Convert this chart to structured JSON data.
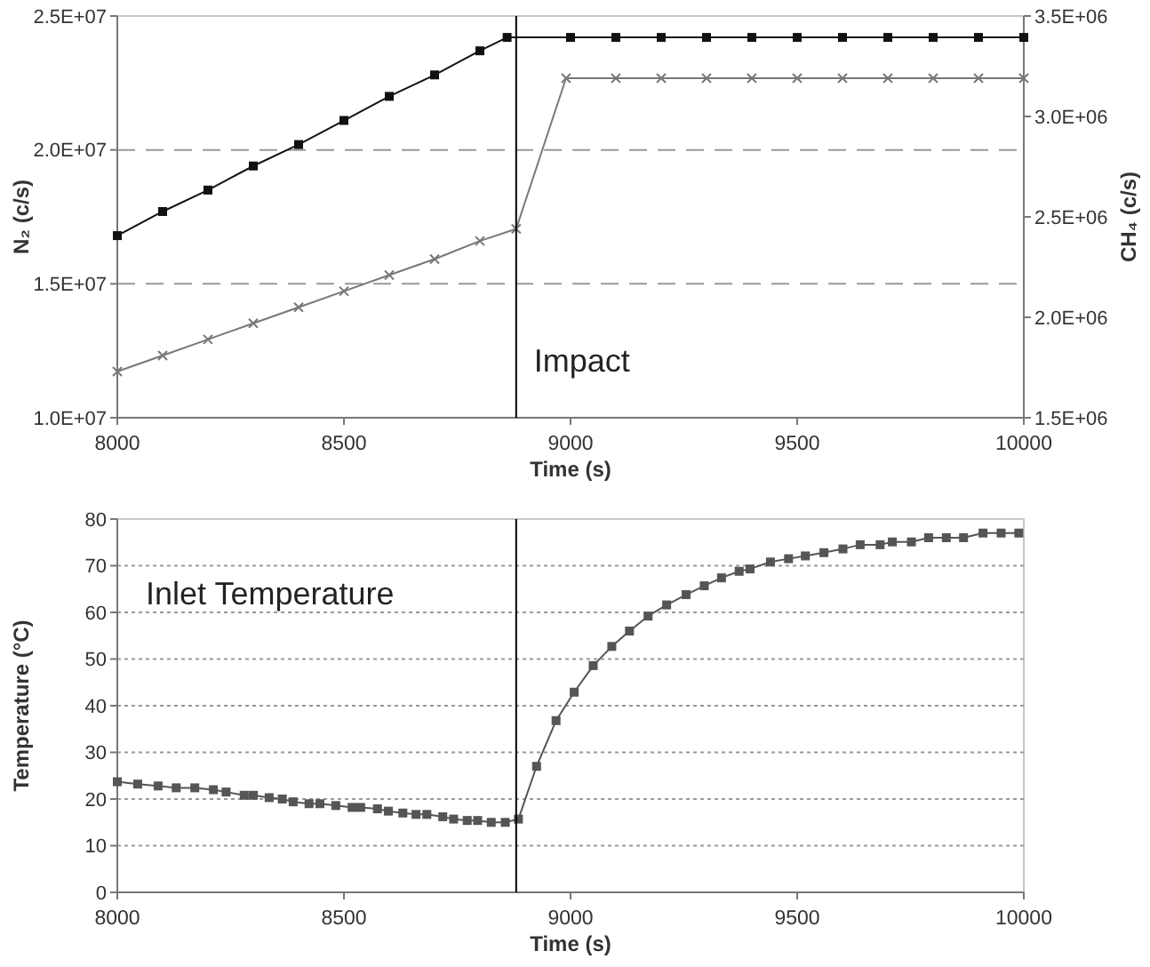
{
  "chart_data": [
    {
      "type": "line",
      "xlabel": "Time (s)",
      "ylabel": "N₂ (c/s)",
      "y2label": "CH₄ (c/s)",
      "xlim": [
        8000,
        10000
      ],
      "xticks": [
        8000,
        8500,
        9000,
        9500,
        10000
      ],
      "ylim": [
        10000000,
        25000000
      ],
      "yticks": [
        {
          "value": 10000000,
          "label": "1.0E+07"
        },
        {
          "value": 15000000,
          "label": "1.5E+07"
        },
        {
          "value": 20000000,
          "label": "2.0E+07"
        },
        {
          "value": 25000000,
          "label": "2.5E+07"
        }
      ],
      "y2lim": [
        1500000,
        3500000
      ],
      "y2ticks": [
        {
          "value": 1500000,
          "label": "1.5E+06"
        },
        {
          "value": 2000000,
          "label": "2.0E+06"
        },
        {
          "value": 2500000,
          "label": "2.5E+06"
        },
        {
          "value": 3000000,
          "label": "3.0E+06"
        },
        {
          "value": 3500000,
          "label": "3.5E+06"
        }
      ],
      "grid": "y",
      "ref_lines": [
        {
          "axis": "x",
          "value": 8880,
          "label": "Impact",
          "color": "#000000"
        }
      ],
      "series": [
        {
          "color": "#111111",
          "marker": "square",
          "x": [
            8000,
            8100,
            8200,
            8300,
            8400,
            8500,
            8600,
            8700,
            8800,
            8860,
            9000,
            9100,
            9200,
            9300,
            9400,
            9500,
            9600,
            9700,
            9800,
            9900,
            10000
          ],
          "values": [
            16800000,
            17700000,
            18500000,
            19400000,
            20200000,
            21100000,
            22000000,
            22800000,
            23700000,
            24200000,
            24200000,
            24200000,
            24200000,
            24200000,
            24200000,
            24200000,
            24200000,
            24200000,
            24200000,
            24200000,
            24200000
          ]
        },
        {
          "color": "#777777",
          "marker": "cross",
          "axis": "y2",
          "x": [
            8000,
            8100,
            8200,
            8300,
            8400,
            8500,
            8600,
            8700,
            8800,
            8880,
            8990,
            9100,
            9200,
            9300,
            9400,
            9500,
            9600,
            9700,
            9800,
            9900,
            10000
          ],
          "values": [
            1730000,
            1810000,
            1890000,
            1970000,
            2050000,
            2130000,
            2210000,
            2290000,
            2380000,
            2440000,
            3190000,
            3190000,
            3190000,
            3190000,
            3190000,
            3190000,
            3190000,
            3190000,
            3190000,
            3190000,
            3190000
          ]
        }
      ]
    },
    {
      "type": "line",
      "xlabel": "Time (s)",
      "ylabel": "Temperature (°C)",
      "xlim": [
        8000,
        10000
      ],
      "xticks": [
        8000,
        8500,
        9000,
        9500,
        10000
      ],
      "ylim": [
        0,
        80
      ],
      "yticks": [
        0,
        10,
        20,
        30,
        40,
        50,
        60,
        70,
        80
      ],
      "grid": "y",
      "annotations": [
        "Inlet Temperature"
      ],
      "ref_lines": [
        {
          "axis": "x",
          "value": 8880,
          "color": "#000000"
        }
      ],
      "series": [
        {
          "color": "#555555",
          "marker": "square",
          "x": [
            8000,
            8045,
            8090,
            8130,
            8171,
            8212,
            8240,
            8280,
            8300,
            8335,
            8364,
            8388,
            8423,
            8447,
            8482,
            8518,
            8537,
            8574,
            8598,
            8630,
            8659,
            8683,
            8718,
            8742,
            8772,
            8795,
            8825,
            8856,
            8885,
            8925,
            8968,
            9008,
            9050,
            9091,
            9130,
            9171,
            9212,
            9255,
            9295,
            9333,
            9372,
            9396,
            9441,
            9481,
            9518,
            9559,
            9601,
            9639,
            9683,
            9710,
            9752,
            9790,
            9829,
            9867,
            9910,
            9950,
            9989
          ],
          "values": [
            23.7,
            23.2,
            22.8,
            22.4,
            22.4,
            22.0,
            21.5,
            20.8,
            20.8,
            20.3,
            20.0,
            19.4,
            19.0,
            19.0,
            18.6,
            18.2,
            18.2,
            17.9,
            17.4,
            17.0,
            16.7,
            16.7,
            16.2,
            15.7,
            15.4,
            15.4,
            15.0,
            15.0,
            15.7,
            27.0,
            36.8,
            42.9,
            48.6,
            52.7,
            56.0,
            59.2,
            61.6,
            63.8,
            65.7,
            67.4,
            68.8,
            69.3,
            70.8,
            71.5,
            72.1,
            72.8,
            73.6,
            74.5,
            74.5,
            75.1,
            75.1,
            76.0,
            76.0,
            76.0,
            77.0,
            77.0,
            77.0
          ]
        }
      ]
    }
  ]
}
